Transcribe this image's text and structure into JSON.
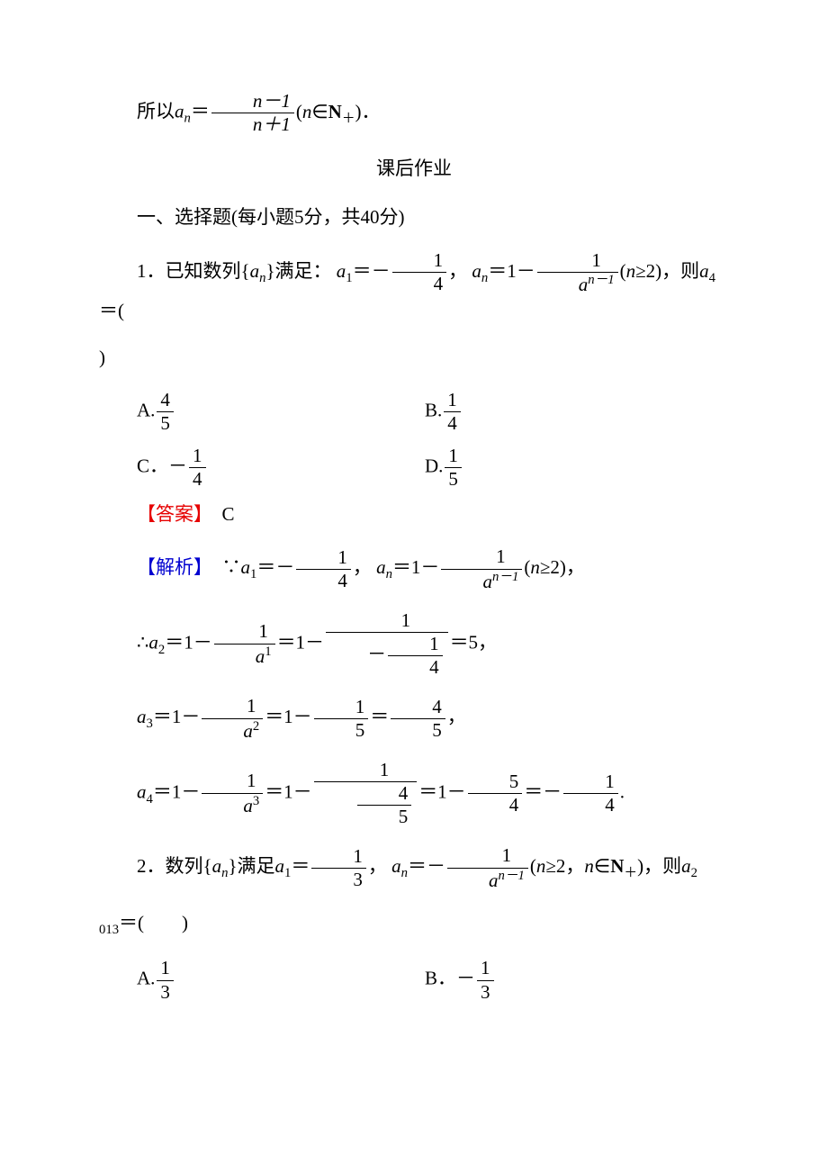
{
  "colors": {
    "text": "#000000",
    "red": "#e60000",
    "blue": "#0000d0",
    "background": "#ffffff",
    "frac_rule": "#000000"
  },
  "typography": {
    "font_family_cjk": "SimSun",
    "font_family_math": "Times New Roman",
    "font_size_pt": 16,
    "line_height": 1.6
  },
  "l1": {
    "prefix": "所以",
    "var_a": "a",
    "sub_n": "n",
    "eq": "＝",
    "num": "n－1",
    "den": "n＋1",
    "suffix": "(n∈N",
    "subp": "＋",
    "tail": ")．"
  },
  "heading": "课后作业",
  "sec1": "一、选择题(每小题5分，共40分)",
  "q1": {
    "stem_a": "1．已知数列{",
    "a": "a",
    "sub_n": "n",
    "stem_b": "}满足：",
    "a1": "a",
    "sub_1": "1",
    "eq1": "＝－",
    "f1_num": "1",
    "f1_den": "4",
    "comma": "，",
    "an": "a",
    "sub_n2": "n",
    "eq2": "＝1－",
    "f2_num": "1",
    "f2_den_a": "a",
    "f2_den_sup": "n－1",
    "cond": "(n≥2)，则",
    "a4": "a",
    "sub_4": "4",
    "eq3": "＝(",
    "close": ")",
    "optA_lbl": "A.",
    "optA_num": "4",
    "optA_den": "5",
    "optB_lbl": "B.",
    "optB_num": "1",
    "optB_den": "4",
    "optC_lbl": "C．－",
    "optC_num": "1",
    "optC_den": "4",
    "optD_lbl": "D.",
    "optD_num": "1",
    "optD_den": "5",
    "ans_lbl": "【答案】",
    "ans_val": "C",
    "sol_lbl": "【解析】",
    "sol1_a": "∵",
    "sol1_b": "＝－",
    "sol1_c": "，",
    "sol1_d": "＝1－",
    "sol1_e": "(n≥2)，",
    "sol2_a": "∴",
    "sol2_a2": "a",
    "sol2_sub2": "2",
    "sol2_b": "＝1－",
    "sol2_f1_num": "1",
    "sol2_f1_den_a": "a",
    "sol2_f1_den_sup": "1",
    "sol2_c": "＝1－",
    "sol2_f2_num": "1",
    "sol2_f2_den_num": "1",
    "sol2_f2_den_den": "4",
    "sol2_d": "＝5，",
    "sol3_a": "a",
    "sol3_sub3": "3",
    "sol3_b": "＝1－",
    "sol3_f1_num": "1",
    "sol3_f1_den_a": "a",
    "sol3_f1_den_sup": "2",
    "sol3_c": "＝1－",
    "sol3_f2_num": "1",
    "sol3_f2_den": "5",
    "sol3_d": "＝",
    "sol3_f3_num": "4",
    "sol3_f3_den": "5",
    "sol3_e": "，",
    "sol4_a": "a",
    "sol4_sub4": "4",
    "sol4_b": "＝1－",
    "sol4_f1_num": "1",
    "sol4_f1_den_a": "a",
    "sol4_f1_den_sup": "3",
    "sol4_c": "＝1－",
    "sol4_f2_num": "1",
    "sol4_f2_den_num": "4",
    "sol4_f2_den_den": "5",
    "sol4_d": "＝1－",
    "sol4_f3_num": "5",
    "sol4_f3_den": "4",
    "sol4_e": "＝－",
    "sol4_f4_num": "1",
    "sol4_f4_den": "4",
    "sol4_f": "."
  },
  "q2": {
    "stem_a": "2．数列{",
    "a": "a",
    "sub_n": "n",
    "stem_b": "}满足",
    "a1": "a",
    "sub_1": "1",
    "eq1": "＝",
    "f1_num": "1",
    "f1_den": "3",
    "comma": "，",
    "an": "a",
    "sub_n2": "n",
    "eq2": "＝－",
    "f2_num": "1",
    "f2_den_a": "a",
    "f2_den_sup": "n－1",
    "cond_a": "(n≥2，n∈N",
    "cond_sub": "＋",
    "cond_b": ")，则",
    "a2": "a",
    "sub_2": "2",
    "sub_013": "013",
    "eq3": "＝(　　)",
    "optA_lbl": "A.",
    "optA_num": "1",
    "optA_den": "3",
    "optB_lbl": "B．－",
    "optB_num": "1",
    "optB_den": "3"
  }
}
